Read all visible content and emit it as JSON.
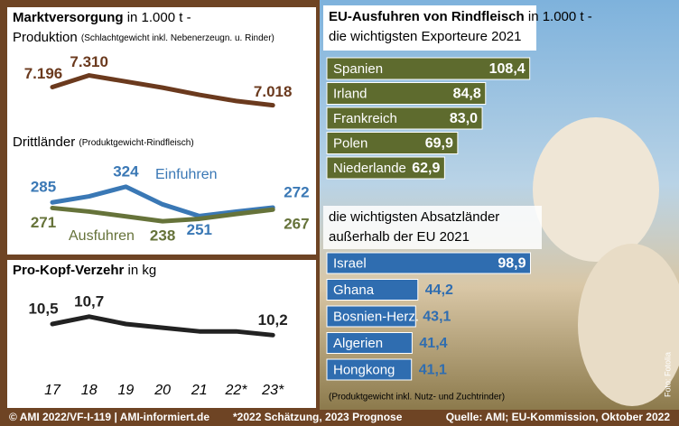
{
  "chart_data": [
    {
      "type": "line",
      "title": "Marktversorgung",
      "title_unit": "in 1.000 t -",
      "subtitle": "Produktion",
      "subtitle_note": "(Schlachtgewicht inkl. Nebenerzeugn. u. Rinder)",
      "values": [
        7196,
        7310,
        7250,
        7190,
        7120,
        7060,
        7018
      ],
      "value_labels": [
        "7.196",
        "7.310",
        null,
        null,
        null,
        null,
        "7.018"
      ],
      "color": "#6b3a1e",
      "ylim": [
        6900,
        7500
      ]
    },
    {
      "type": "line",
      "title": "Drittländer",
      "title_note": "(Produktgewicht-Rindfleisch)",
      "series": [
        {
          "name": "Einfuhren",
          "color": "#3a78b5",
          "values": [
            285,
            300,
            324,
            280,
            251,
            262,
            272
          ],
          "value_labels": [
            "285",
            null,
            "324",
            null,
            "251",
            null,
            "272"
          ]
        },
        {
          "name": "Ausfuhren",
          "color": "#66733a",
          "values": [
            271,
            262,
            250,
            238,
            244,
            256,
            267
          ],
          "value_labels": [
            "271",
            null,
            null,
            "238",
            null,
            null,
            "267"
          ]
        }
      ],
      "ylim": [
        200,
        380
      ]
    },
    {
      "type": "line",
      "title": "Pro-Kopf-Verzehr",
      "title_unit": "in kg",
      "categories": [
        "17",
        "18",
        "19",
        "20",
        "21",
        "22*",
        "23*"
      ],
      "values": [
        10.5,
        10.7,
        10.5,
        10.4,
        10.3,
        10.3,
        10.2
      ],
      "value_labels": [
        "10,5",
        "10,7",
        null,
        null,
        null,
        null,
        "10,2"
      ],
      "color": "#222222",
      "ylim": [
        9.5,
        11.5
      ]
    },
    {
      "type": "hbar",
      "title": "EU-Ausfuhren von Rindfleisch",
      "title_unit": "in 1.000 t -",
      "subtitle": "die wichtigsten Exporteure 2021",
      "categories": [
        "Spanien",
        "Irland",
        "Frankreich",
        "Polen",
        "Niederlande"
      ],
      "values": [
        108.4,
        84.8,
        83.0,
        69.9,
        62.9
      ],
      "value_labels": [
        "108,4",
        "84,8",
        "83,0",
        "69,9",
        "62,9"
      ],
      "color": "#5e6b2e",
      "xlim": [
        0,
        110
      ]
    },
    {
      "type": "hbar",
      "title": "die wichtigsten Absatzländer",
      "subtitle": "außerhalb der EU 2021",
      "note": "(Produktgewicht inkl. Nutz- und Zuchtrinder)",
      "categories": [
        "Israel",
        "Ghana",
        "Bosnien-Herz.",
        "Algerien",
        "Hongkong"
      ],
      "values": [
        98.9,
        44.2,
        43.1,
        41.4,
        41.1
      ],
      "value_labels": [
        "98,9",
        "44,2",
        "43,1",
        "41,4",
        "41,1"
      ],
      "color": "#2f6db0",
      "xlim": [
        0,
        100
      ]
    }
  ],
  "footer": {
    "copyright": "© AMI 2022/VF-I-119 | AMI-informiert.de",
    "footnote": "*2022 Schätzung, 2023 Prognose",
    "source": "Quelle: AMI; EU-Kommission, Oktober 2022",
    "photo_credit": "Foto: Fotolia"
  }
}
